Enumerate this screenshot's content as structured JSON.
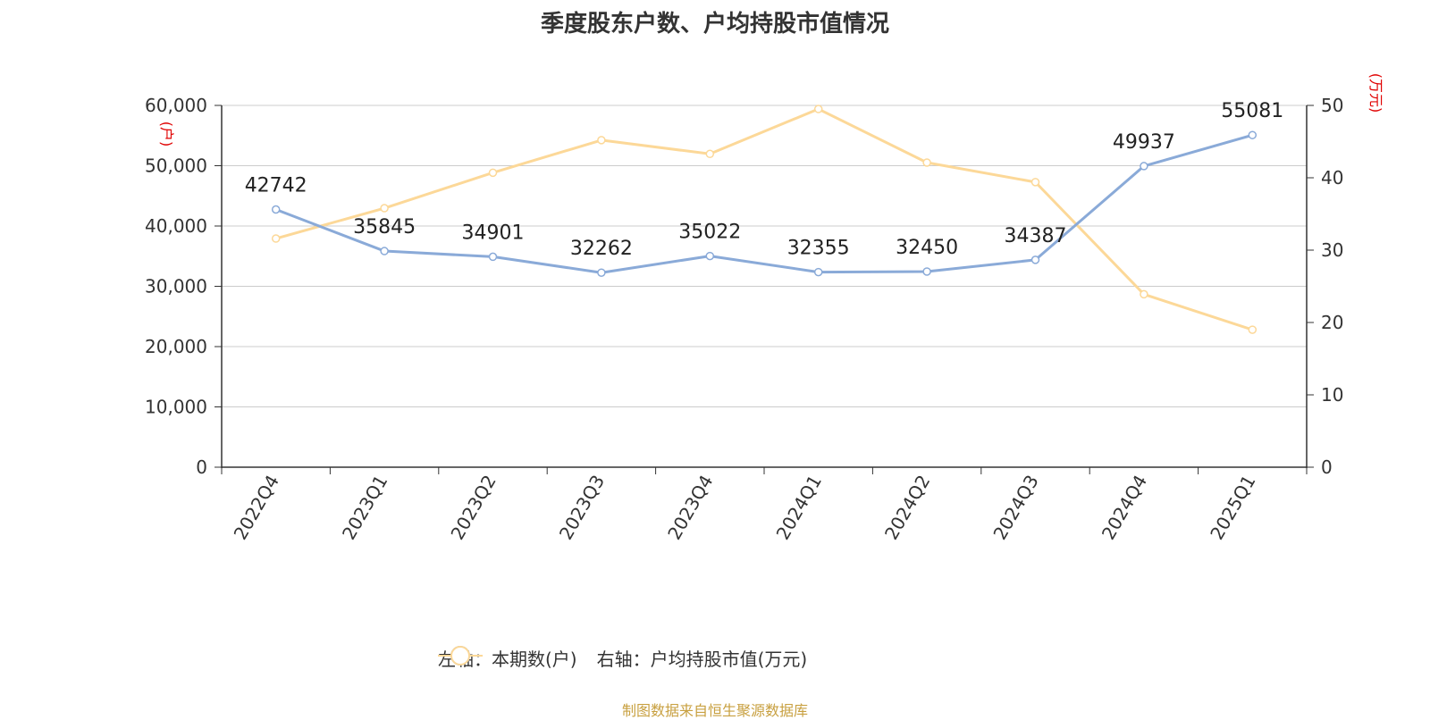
{
  "title": "季度股东户数、户均持股市值情况",
  "source": "制图数据来自恒生聚源数据库",
  "colors": {
    "series1": "#8aaad8",
    "series2": "#fcd898",
    "axis_unit": "#e00000",
    "grid": "#cccccc",
    "axis": "#333333"
  },
  "chart_data": {
    "type": "line",
    "title": "季度股东户数、户均持股市值情况",
    "categories": [
      "2022Q4",
      "2023Q1",
      "2023Q2",
      "2023Q3",
      "2023Q4",
      "2024Q1",
      "2024Q2",
      "2024Q3",
      "2024Q4",
      "2025Q1"
    ],
    "y_left": {
      "unit": "(户)",
      "range": [
        0,
        60000
      ],
      "ticks": [
        "0",
        "10,000",
        "20,000",
        "30,000",
        "40,000",
        "50,000",
        "60,000"
      ]
    },
    "y_right": {
      "unit": "(万元)",
      "range": [
        0,
        50
      ],
      "ticks": [
        "0",
        "10",
        "20",
        "30",
        "40",
        "50"
      ]
    },
    "grid": true,
    "legend_position": "bottom-center",
    "series": [
      {
        "name": "左轴：本期数(户)",
        "axis": "left",
        "values": [
          42742,
          35845,
          34901,
          32262,
          35022,
          32355,
          32450,
          34387,
          49937,
          55081
        ],
        "labels": [
          "42742",
          "35845",
          "34901",
          "32262",
          "35022",
          "32355",
          "32450",
          "34387",
          "49937",
          "55081"
        ]
      },
      {
        "name": "右轴：户均持股市值(万元)",
        "axis": "right",
        "values": [
          31.6,
          35.8,
          40.7,
          45.2,
          43.3,
          49.5,
          42.1,
          39.4,
          23.9,
          19.0
        ]
      }
    ]
  }
}
